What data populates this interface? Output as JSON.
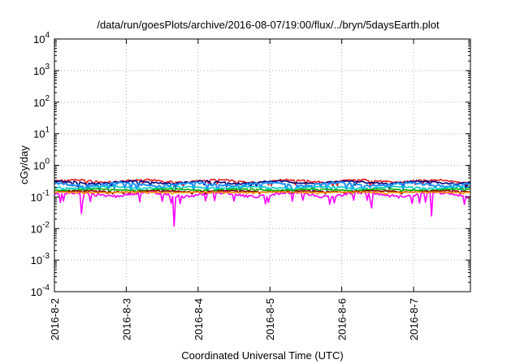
{
  "chart_data": {
    "type": "line",
    "title": "/data/run/goesPlots/archive/2016-08-07/19:00/flux/../bryn/5daysEarth.plot",
    "xlabel": "Coordinated Universal Time (UTC)",
    "ylabel": "cGy/day",
    "yscale": "log",
    "ylim": [
      0.0001,
      10000
    ],
    "xlim": [
      "2016-08-02 00:00",
      "2016-08-07 19:00"
    ],
    "grid": true,
    "legend": "none",
    "x_ticks": [
      "2016-8-2",
      "2016-8-3",
      "2016-8-4",
      "2016-8-5",
      "2016-8-6",
      "2016-8-7"
    ],
    "y_ticks": [
      {
        "value": 0.0001,
        "base": "10",
        "exp": "-4"
      },
      {
        "value": 0.001,
        "base": "10",
        "exp": "-3"
      },
      {
        "value": 0.01,
        "base": "10",
        "exp": "-2"
      },
      {
        "value": 0.1,
        "base": "10",
        "exp": "-1"
      },
      {
        "value": 1,
        "base": "10",
        "exp": "0"
      },
      {
        "value": 10,
        "base": "10",
        "exp": "1"
      },
      {
        "value": 100,
        "base": "10",
        "exp": "2"
      },
      {
        "value": 1000,
        "base": "10",
        "exp": "3"
      },
      {
        "value": 10000,
        "base": "10",
        "exp": "4"
      }
    ],
    "series": [
      {
        "color": "#e41a1c",
        "baseline": 0.32,
        "amplitude": 0.35
      },
      {
        "color": "#000080",
        "baseline": 0.29,
        "amplitude": 0.33
      },
      {
        "color": "#1e90ff",
        "baseline": 0.25,
        "amplitude": 0.45
      },
      {
        "color": "#00c8c8",
        "baseline": 0.2,
        "amplitude": 0.25
      },
      {
        "color": "#00b000",
        "baseline": 0.17,
        "amplitude": 0.2
      },
      {
        "color": "#8b0000",
        "baseline": 0.15,
        "amplitude": 0.18
      },
      {
        "color": "#ff00ff",
        "baseline": 0.12,
        "amplitude": 0.55
      },
      {
        "color": "#ff8c00",
        "baseline": 0.14,
        "amplitude": 0.1
      }
    ],
    "dips": [
      {
        "x": "2016-08-02 09:00",
        "y": 0.03
      },
      {
        "x": "2016-08-03 16:00",
        "y": 0.012
      },
      {
        "x": "2016-08-06 10:00",
        "y": 0.045
      },
      {
        "x": "2016-08-07 06:00",
        "y": 0.025
      }
    ]
  }
}
